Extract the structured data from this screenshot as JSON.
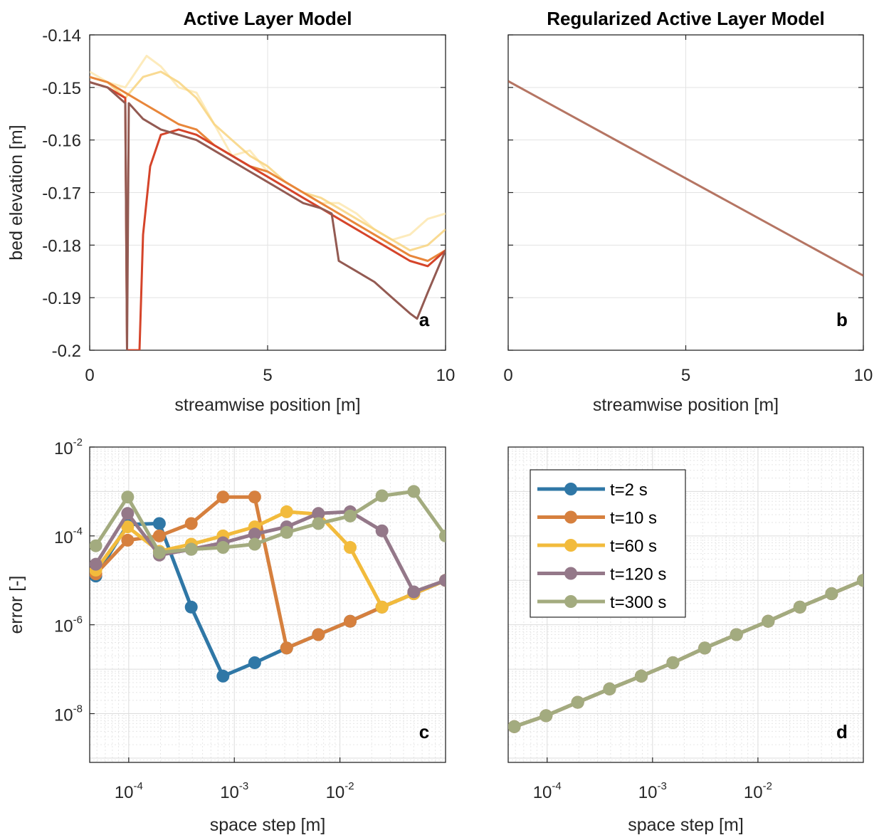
{
  "colors": {
    "t2": "#2f77a6",
    "t10": "#d6803e",
    "t60": "#f2bb3c",
    "t120": "#947889",
    "t300": "#a3ab7f",
    "profile_dark": "#935a52",
    "profile_red": "#d5442a",
    "profile_orange": "#e8863a",
    "profile_light": "#f8d37f",
    "profile_pale": "#fde7b0",
    "regularized": "#a85d48"
  },
  "chart_data": [
    {
      "panel": "a",
      "type": "line",
      "title": "Active Layer Model",
      "xlabel": "streamwise position [m]",
      "ylabel": "bed elevation [m]",
      "xlim": [
        0,
        10
      ],
      "ylim": [
        -0.2,
        -0.14
      ],
      "xticks": [
        "0",
        "5",
        "10"
      ],
      "yticks": [
        "-0.14",
        "-0.15",
        "-0.16",
        "-0.17",
        "-0.18",
        "-0.19",
        "-0.2"
      ],
      "grid": true,
      "series": [
        {
          "color_key": "profile_pale",
          "x": [
            0,
            0.5,
            1.0,
            1.2,
            1.6,
            2.0,
            2.5,
            3.0,
            3.5,
            4.0,
            4.5,
            5.0,
            5.5,
            6.0,
            6.5,
            7.0,
            7.5,
            8.0,
            8.5,
            9.0,
            9.5,
            10.0
          ],
          "y": [
            -0.147,
            -0.149,
            -0.15,
            -0.148,
            -0.144,
            -0.146,
            -0.15,
            -0.151,
            -0.157,
            -0.163,
            -0.162,
            -0.166,
            -0.168,
            -0.17,
            -0.172,
            -0.172,
            -0.174,
            -0.177,
            -0.179,
            -0.178,
            -0.175,
            -0.174
          ]
        },
        {
          "color_key": "profile_light",
          "x": [
            0,
            0.5,
            1.0,
            1.5,
            2.0,
            2.5,
            3.0,
            3.5,
            4.0,
            4.5,
            5.0,
            5.5,
            6.0,
            6.5,
            7.0,
            7.5,
            8.0,
            8.5,
            9.0,
            9.5,
            10.0
          ],
          "y": [
            -0.148,
            -0.149,
            -0.152,
            -0.148,
            -0.147,
            -0.149,
            -0.152,
            -0.157,
            -0.16,
            -0.163,
            -0.165,
            -0.168,
            -0.17,
            -0.171,
            -0.173,
            -0.175,
            -0.177,
            -0.179,
            -0.181,
            -0.18,
            -0.177
          ]
        },
        {
          "color_key": "profile_orange",
          "x": [
            0,
            0.5,
            1.0,
            1.5,
            2.0,
            2.5,
            3.0,
            3.5,
            4.0,
            4.5,
            5.0,
            5.5,
            6.0,
            6.5,
            7.0,
            7.5,
            8.0,
            8.5,
            9.0,
            9.5,
            10.0
          ],
          "y": [
            -0.148,
            -0.149,
            -0.151,
            -0.153,
            -0.155,
            -0.157,
            -0.158,
            -0.161,
            -0.163,
            -0.165,
            -0.166,
            -0.168,
            -0.17,
            -0.172,
            -0.174,
            -0.176,
            -0.178,
            -0.18,
            -0.182,
            -0.183,
            -0.181
          ]
        },
        {
          "color_key": "profile_red",
          "x": [
            0,
            0.5,
            1.0,
            1.05,
            1.4,
            1.5,
            1.7,
            2.0,
            2.5,
            3.0,
            3.5,
            4.0,
            4.5,
            5.0,
            5.5,
            6.0,
            6.5,
            7.0,
            7.5,
            8.0,
            8.5,
            9.0,
            9.5,
            10.0
          ],
          "y": [
            -0.149,
            -0.15,
            -0.152,
            -0.2,
            -0.2,
            -0.178,
            -0.165,
            -0.159,
            -0.158,
            -0.159,
            -0.161,
            -0.163,
            -0.165,
            -0.167,
            -0.169,
            -0.171,
            -0.173,
            -0.175,
            -0.177,
            -0.179,
            -0.181,
            -0.183,
            -0.184,
            -0.181
          ]
        },
        {
          "color_key": "profile_dark",
          "x": [
            0,
            0.5,
            1.0,
            1.05,
            1.1,
            1.5,
            2.0,
            2.5,
            3.0,
            3.5,
            4.0,
            4.5,
            5.0,
            5.5,
            6.0,
            6.5,
            6.8,
            7.0,
            7.5,
            8.0,
            8.5,
            9.0,
            9.2,
            9.5,
            10.0
          ],
          "y": [
            -0.149,
            -0.15,
            -0.153,
            -0.2,
            -0.153,
            -0.156,
            -0.158,
            -0.159,
            -0.16,
            -0.162,
            -0.164,
            -0.166,
            -0.168,
            -0.17,
            -0.172,
            -0.173,
            -0.174,
            -0.183,
            -0.185,
            -0.187,
            -0.19,
            -0.193,
            -0.194,
            -0.189,
            -0.181
          ]
        }
      ],
      "panel_letter": "a"
    },
    {
      "panel": "b",
      "type": "line",
      "title": "Regularized Active Layer Model",
      "xlabel": "streamwise position [m]",
      "ylabel": "",
      "xlim": [
        0,
        10
      ],
      "ylim": [
        -0.2,
        -0.14
      ],
      "xticks": [
        "0",
        "5",
        "10"
      ],
      "grid": true,
      "series": [
        {
          "color_key": "regularized",
          "x": [
            0,
            10
          ],
          "y": [
            -0.1488,
            -0.1858
          ]
        }
      ],
      "panel_letter": "b"
    },
    {
      "panel": "c",
      "type": "line",
      "title": "",
      "xlabel": "space step [m]",
      "ylabel": "error [-]",
      "xscale": "log",
      "yscale": "log",
      "xlim": [
        4.27e-05,
        0.1
      ],
      "ylim": [
        8e-10,
        0.01
      ],
      "xticks": [
        {
          "base": "10",
          "exp": "-4"
        },
        {
          "base": "10",
          "exp": "-3"
        },
        {
          "base": "10",
          "exp": "-2"
        }
      ],
      "yticks": [
        {
          "base": "10",
          "exp": "-2"
        },
        {
          "base": "10",
          "exp": "-4"
        },
        {
          "base": "10",
          "exp": "-6"
        },
        {
          "base": "10",
          "exp": "-8"
        }
      ],
      "grid": true,
      "x": [
        4.88e-05,
        9.77e-05,
        0.000195,
        0.000391,
        0.000781,
        0.00156,
        0.00313,
        0.00625,
        0.0125,
        0.025,
        0.05,
        0.1
      ],
      "series": [
        {
          "name": "t=2 s",
          "color_key": "t2",
          "values": [
            1.25e-05,
            0.00018,
            0.00019,
            2.5e-06,
            7e-08,
            1.4e-07,
            3e-07,
            6e-07,
            1.2e-06,
            2.5e-06,
            5e-06,
            1e-05
          ]
        },
        {
          "name": "t=10 s",
          "color_key": "t10",
          "values": [
            1.4e-05,
            8e-05,
            0.0001,
            0.00019,
            0.00075,
            0.00075,
            3e-07,
            6e-07,
            1.2e-06,
            2.5e-06,
            5e-06,
            1e-05
          ]
        },
        {
          "name": "t=60 s",
          "color_key": "t60",
          "values": [
            1.7e-05,
            0.00016,
            4.5e-05,
            6.5e-05,
            0.0001,
            0.00016,
            0.00035,
            0.00031,
            5.5e-05,
            2.5e-06,
            5e-06,
            1e-05
          ]
        },
        {
          "name": "t=120 s",
          "color_key": "t120",
          "values": [
            2.3e-05,
            0.00032,
            3.7e-05,
            5e-05,
            7e-05,
            0.00011,
            0.00016,
            0.00032,
            0.00035,
            0.00013,
            5.5e-06,
            1e-05
          ]
        },
        {
          "name": "t=300 s",
          "color_key": "t300",
          "values": [
            6e-05,
            0.00075,
            4.2e-05,
            5e-05,
            5.5e-05,
            6.5e-05,
            0.00012,
            0.00019,
            0.00028,
            0.0008,
            0.001,
            0.0001
          ]
        }
      ],
      "panel_letter": "c"
    },
    {
      "panel": "d",
      "type": "line",
      "title": "",
      "xlabel": "space step [m]",
      "ylabel": "",
      "xscale": "log",
      "yscale": "log",
      "xlim": [
        4.27e-05,
        0.1
      ],
      "ylim": [
        8e-10,
        0.01
      ],
      "xticks": [
        {
          "base": "10",
          "exp": "-4"
        },
        {
          "base": "10",
          "exp": "-3"
        },
        {
          "base": "10",
          "exp": "-2"
        }
      ],
      "grid": true,
      "legend_position": "top-left",
      "x": [
        4.88e-05,
        9.77e-05,
        0.000195,
        0.000391,
        0.000781,
        0.00156,
        0.00313,
        0.00625,
        0.0125,
        0.025,
        0.05,
        0.1
      ],
      "series": [
        {
          "name": "t=2 s",
          "color_key": "t2",
          "values": [
            5.1e-09,
            9e-09,
            1.8e-08,
            3.6e-08,
            7e-08,
            1.4e-07,
            3e-07,
            6e-07,
            1.2e-06,
            2.5e-06,
            5e-06,
            1e-05
          ]
        },
        {
          "name": "t=10 s",
          "color_key": "t10",
          "values": [
            5.1e-09,
            9e-09,
            1.8e-08,
            3.6e-08,
            7e-08,
            1.4e-07,
            3e-07,
            6e-07,
            1.2e-06,
            2.5e-06,
            5e-06,
            1e-05
          ]
        },
        {
          "name": "t=60 s",
          "color_key": "t60",
          "values": [
            5.1e-09,
            9e-09,
            1.8e-08,
            3.6e-08,
            7e-08,
            1.4e-07,
            3e-07,
            6e-07,
            1.2e-06,
            2.5e-06,
            5e-06,
            1e-05
          ]
        },
        {
          "name": "t=120 s",
          "color_key": "t120",
          "values": [
            5.1e-09,
            9e-09,
            1.8e-08,
            3.6e-08,
            7e-08,
            1.4e-07,
            3e-07,
            6e-07,
            1.2e-06,
            2.5e-06,
            5e-06,
            1e-05
          ]
        },
        {
          "name": "t=300 s",
          "color_key": "t300",
          "values": [
            5.1e-09,
            9e-09,
            1.8e-08,
            3.6e-08,
            7e-08,
            1.4e-07,
            3e-07,
            6e-07,
            1.2e-06,
            2.5e-06,
            5e-06,
            1e-05
          ]
        }
      ],
      "legend": [
        "t=2 s",
        "t=10 s",
        "t=60 s",
        "t=120 s",
        "t=300 s"
      ],
      "panel_letter": "d"
    }
  ]
}
